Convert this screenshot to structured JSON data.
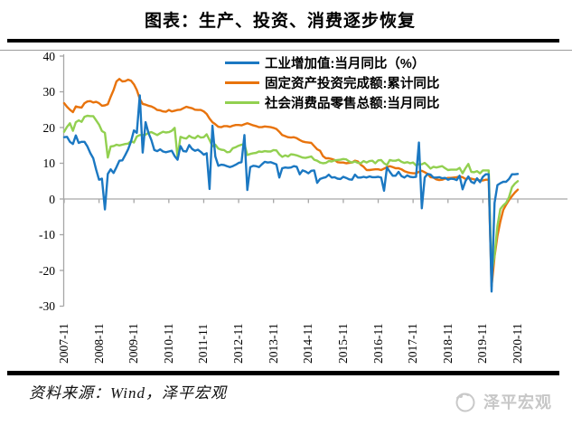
{
  "header": {
    "title": "图表：生产、投资、消费逐步恢复"
  },
  "footer": {
    "source": "资料来源：Wind，泽平宏观",
    "logo_text": "泽平宏观"
  },
  "chart_data": {
    "type": "line",
    "title": "图表：生产、投资、消费逐步恢复",
    "ylim": [
      -30,
      40
    ],
    "y_ticks": [
      40,
      30,
      20,
      10,
      0,
      -10,
      -20,
      -30
    ],
    "grid": "zero-line-only",
    "legend_position": "top-center",
    "x_tick_labels": [
      "2007-11",
      "2008-11",
      "2009-11",
      "2010-11",
      "2011-11",
      "2012-11",
      "2013-11",
      "2014-11",
      "2015-11",
      "2016-11",
      "2017-11",
      "2018-11",
      "2019-11",
      "2020-11"
    ],
    "months_per_tick": 12,
    "axis_color": "#a6a6a6",
    "series": [
      {
        "name": "工业增加值:当月同比（%）",
        "color": "#1b78c2",
        "values": [
          17.3,
          17.4,
          16.0,
          15.4,
          17.8,
          15.7,
          16.0,
          16.0,
          14.7,
          12.8,
          11.4,
          8.2,
          5.4,
          5.7,
          -2.9,
          7.0,
          8.3,
          7.3,
          8.9,
          10.7,
          10.8,
          12.3,
          13.9,
          16.1,
          19.2,
          18.5,
          29.0,
          13.0,
          21.5,
          18.5,
          16.5,
          13.7,
          13.4,
          13.9,
          13.3,
          13.1,
          13.3,
          13.5,
          12.0,
          11.0,
          14.8,
          13.4,
          13.3,
          15.1,
          14.0,
          13.5,
          13.8,
          13.2,
          12.4,
          12.8,
          2.8,
          20.5,
          11.9,
          9.3,
          9.6,
          9.5,
          9.2,
          8.9,
          9.2,
          9.6,
          10.1,
          10.3,
          17.9,
          2.5,
          8.9,
          9.3,
          9.2,
          8.9,
          9.7,
          10.4,
          10.2,
          10.3,
          10.0,
          9.7,
          6.0,
          8.6,
          8.8,
          8.7,
          8.8,
          9.2,
          9.0,
          6.9,
          8.0,
          7.7,
          7.2,
          7.9,
          8.0,
          4.5,
          5.6,
          5.9,
          6.1,
          6.8,
          6.0,
          6.1,
          5.7,
          5.6,
          6.2,
          5.9,
          5.5,
          5.4,
          6.8,
          6.0,
          6.0,
          6.2,
          6.0,
          6.3,
          6.1,
          6.1,
          6.2,
          6.0,
          2.3,
          8.8,
          7.6,
          6.5,
          6.5,
          7.6,
          6.4,
          6.0,
          6.6,
          6.2,
          6.1,
          6.2,
          15.8,
          -2.6,
          6.0,
          7.0,
          6.8,
          6.0,
          6.0,
          6.1,
          5.8,
          5.9,
          5.4,
          5.7,
          5.6,
          5.3,
          6.5,
          2.7,
          5.0,
          6.3,
          4.8,
          4.4,
          5.8,
          4.7,
          6.2,
          6.9,
          6.9,
          -25.9,
          -1.1,
          3.9,
          4.4,
          4.8,
          4.8,
          5.6,
          6.9,
          6.9,
          7.0
        ]
      },
      {
        "name": "固定资产投资完成额:累计同比",
        "color": "#e8730c",
        "values": [
          26.8,
          25.8,
          25.0,
          24.3,
          25.9,
          25.7,
          25.6,
          26.8,
          27.3,
          27.4,
          27.0,
          27.2,
          26.8,
          26.1,
          26.2,
          26.5,
          28.6,
          30.5,
          32.9,
          33.6,
          32.9,
          33.0,
          33.4,
          33.1,
          32.1,
          30.5,
          28.0,
          26.6,
          26.4,
          26.1,
          25.9,
          25.5,
          24.9,
          24.8,
          24.5,
          24.4,
          24.9,
          24.5,
          24.7,
          24.9,
          25.0,
          25.4,
          25.8,
          25.6,
          25.4,
          25.0,
          24.9,
          24.9,
          24.5,
          23.8,
          22.5,
          21.5,
          20.9,
          20.2,
          20.1,
          20.4,
          20.4,
          20.2,
          20.5,
          20.7,
          20.7,
          20.6,
          20.9,
          21.2,
          20.9,
          20.6,
          20.4,
          20.1,
          20.1,
          20.3,
          20.2,
          20.1,
          19.9,
          19.6,
          18.8,
          17.9,
          17.6,
          17.3,
          17.2,
          17.3,
          17.0,
          16.5,
          16.1,
          15.9,
          15.8,
          15.7,
          14.8,
          13.9,
          13.5,
          12.0,
          11.4,
          11.4,
          11.2,
          10.9,
          10.3,
          10.2,
          10.2,
          10.0,
          10.1,
          10.2,
          10.7,
          10.5,
          9.6,
          9.0,
          8.1,
          8.1,
          8.2,
          8.3,
          8.3,
          8.1,
          8.5,
          8.9,
          9.2,
          8.9,
          8.6,
          8.6,
          8.3,
          7.8,
          7.5,
          7.3,
          7.2,
          7.2,
          7.6,
          7.9,
          7.5,
          7.0,
          6.1,
          6.0,
          5.5,
          5.3,
          5.4,
          5.7,
          5.9,
          5.9,
          6.0,
          6.1,
          6.3,
          6.1,
          5.6,
          5.8,
          5.7,
          5.5,
          5.4,
          5.2,
          5.2,
          5.4,
          5.4,
          -24.5,
          -16.1,
          -10.3,
          -6.3,
          -3.1,
          -1.6,
          -0.3,
          0.8,
          1.8,
          2.6
        ]
      },
      {
        "name": "社会消费品零售总额:当月同比",
        "color": "#92d050",
        "values": [
          18.8,
          20.2,
          21.2,
          19.1,
          21.5,
          22.0,
          21.6,
          23.0,
          23.3,
          23.2,
          23.2,
          22.0,
          20.8,
          19.0,
          18.5,
          11.6,
          14.7,
          14.8,
          15.2,
          15.0,
          15.2,
          15.4,
          15.5,
          16.2,
          15.8,
          17.5,
          17.9,
          17.9,
          18.0,
          18.5,
          18.7,
          18.3,
          17.9,
          18.4,
          18.8,
          18.6,
          18.7,
          19.1,
          19.9,
          11.6,
          17.4,
          17.1,
          16.9,
          17.7,
          17.2,
          17.0,
          17.7,
          17.2,
          17.3,
          18.1,
          16.5,
          14.7,
          15.2,
          14.1,
          13.8,
          13.7,
          13.1,
          13.2,
          14.2,
          14.5,
          14.9,
          15.2,
          15.4,
          12.3,
          12.6,
          12.8,
          12.9,
          13.3,
          13.2,
          13.4,
          13.3,
          13.3,
          13.7,
          13.6,
          12.5,
          11.8,
          12.2,
          11.9,
          12.5,
          12.4,
          12.2,
          11.9,
          11.6,
          11.5,
          11.7,
          11.9,
          11.0,
          10.7,
          10.2,
          10.0,
          10.1,
          10.6,
          10.5,
          10.8,
          10.9,
          11.0,
          11.2,
          11.1,
          10.5,
          10.2,
          10.5,
          10.1,
          10.0,
          10.6,
          10.2,
          10.6,
          10.7,
          10.0,
          10.8,
          10.9,
          10.0,
          9.5,
          10.9,
          10.7,
          10.7,
          11.0,
          10.4,
          10.1,
          10.3,
          10.0,
          10.2,
          9.4,
          9.8,
          9.7,
          10.1,
          9.4,
          8.5,
          9.0,
          8.8,
          9.0,
          9.2,
          8.6,
          8.1,
          8.2,
          8.2,
          8.2,
          8.7,
          7.2,
          8.6,
          9.8,
          7.6,
          7.5,
          7.8,
          7.2,
          8.0,
          8.0,
          8.0,
          -20.5,
          -15.8,
          -7.5,
          -2.8,
          -1.8,
          -1.1,
          0.5,
          3.3,
          4.3,
          5.0
        ]
      }
    ]
  }
}
